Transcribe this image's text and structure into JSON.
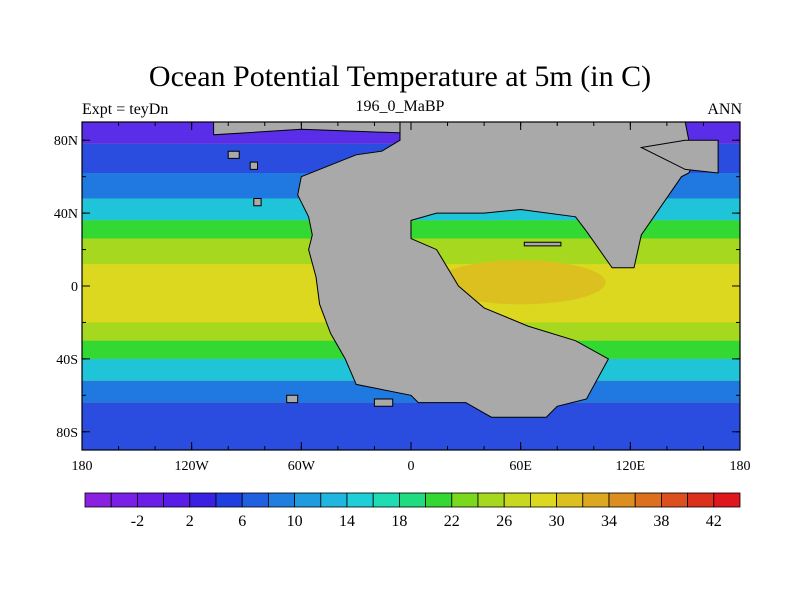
{
  "title": "Ocean Potential Temperature at 5m (in C)",
  "left_label": "Expt = teyDn",
  "center_label": "196_0_MaBP",
  "right_label": "ANN",
  "x_ticks": [
    {
      "value": -180,
      "label": "180"
    },
    {
      "value": -120,
      "label": "120W"
    },
    {
      "value": -60,
      "label": "60W"
    },
    {
      "value": 0,
      "label": "0"
    },
    {
      "value": 60,
      "label": "60E"
    },
    {
      "value": 120,
      "label": "120E"
    },
    {
      "value": 180,
      "label": "180"
    }
  ],
  "y_ticks": [
    {
      "value": 80,
      "label": "80N"
    },
    {
      "value": 40,
      "label": "40N"
    },
    {
      "value": 0,
      "label": "0"
    },
    {
      "value": -40,
      "label": "40S"
    },
    {
      "value": -80,
      "label": "80S"
    }
  ],
  "colorbar": {
    "colors": [
      "#8a21e0",
      "#7a1fe6",
      "#6a1ee8",
      "#5a1de8",
      "#3a20e0",
      "#1f3fe0",
      "#1f5fe0",
      "#1f7ee0",
      "#1f9be0",
      "#1fb6e0",
      "#1fcfd8",
      "#1fdcb4",
      "#1fdc80",
      "#33d833",
      "#7ad81f",
      "#a6d81f",
      "#c8d81f",
      "#dcd81f",
      "#dcc01f",
      "#dca81f",
      "#dc8f1f",
      "#dc701f",
      "#dc501f",
      "#dc301f",
      "#e0161f"
    ],
    "labels": [
      {
        "boundary": 2,
        "text": "-2"
      },
      {
        "boundary": 4,
        "text": "2"
      },
      {
        "boundary": 6,
        "text": "6"
      },
      {
        "boundary": 8,
        "text": "10"
      },
      {
        "boundary": 10,
        "text": "14"
      },
      {
        "boundary": 12,
        "text": "18"
      },
      {
        "boundary": 14,
        "text": "22"
      },
      {
        "boundary": 16,
        "text": "26"
      },
      {
        "boundary": 18,
        "text": "30"
      },
      {
        "boundary": 20,
        "text": "34"
      },
      {
        "boundary": 22,
        "text": "38"
      },
      {
        "boundary": 24,
        "text": "42"
      }
    ]
  },
  "field_colors": {
    "land": "#a9a9a9",
    "polar": "#5a2ee8",
    "subpolar": "#2a4de0",
    "cool": "#1f79e0",
    "mild": "#1fc4d8",
    "temperate": "#33d833",
    "warm": "#a6d81f",
    "tropical": "#dcd81f",
    "hot": "#dcc01f"
  }
}
